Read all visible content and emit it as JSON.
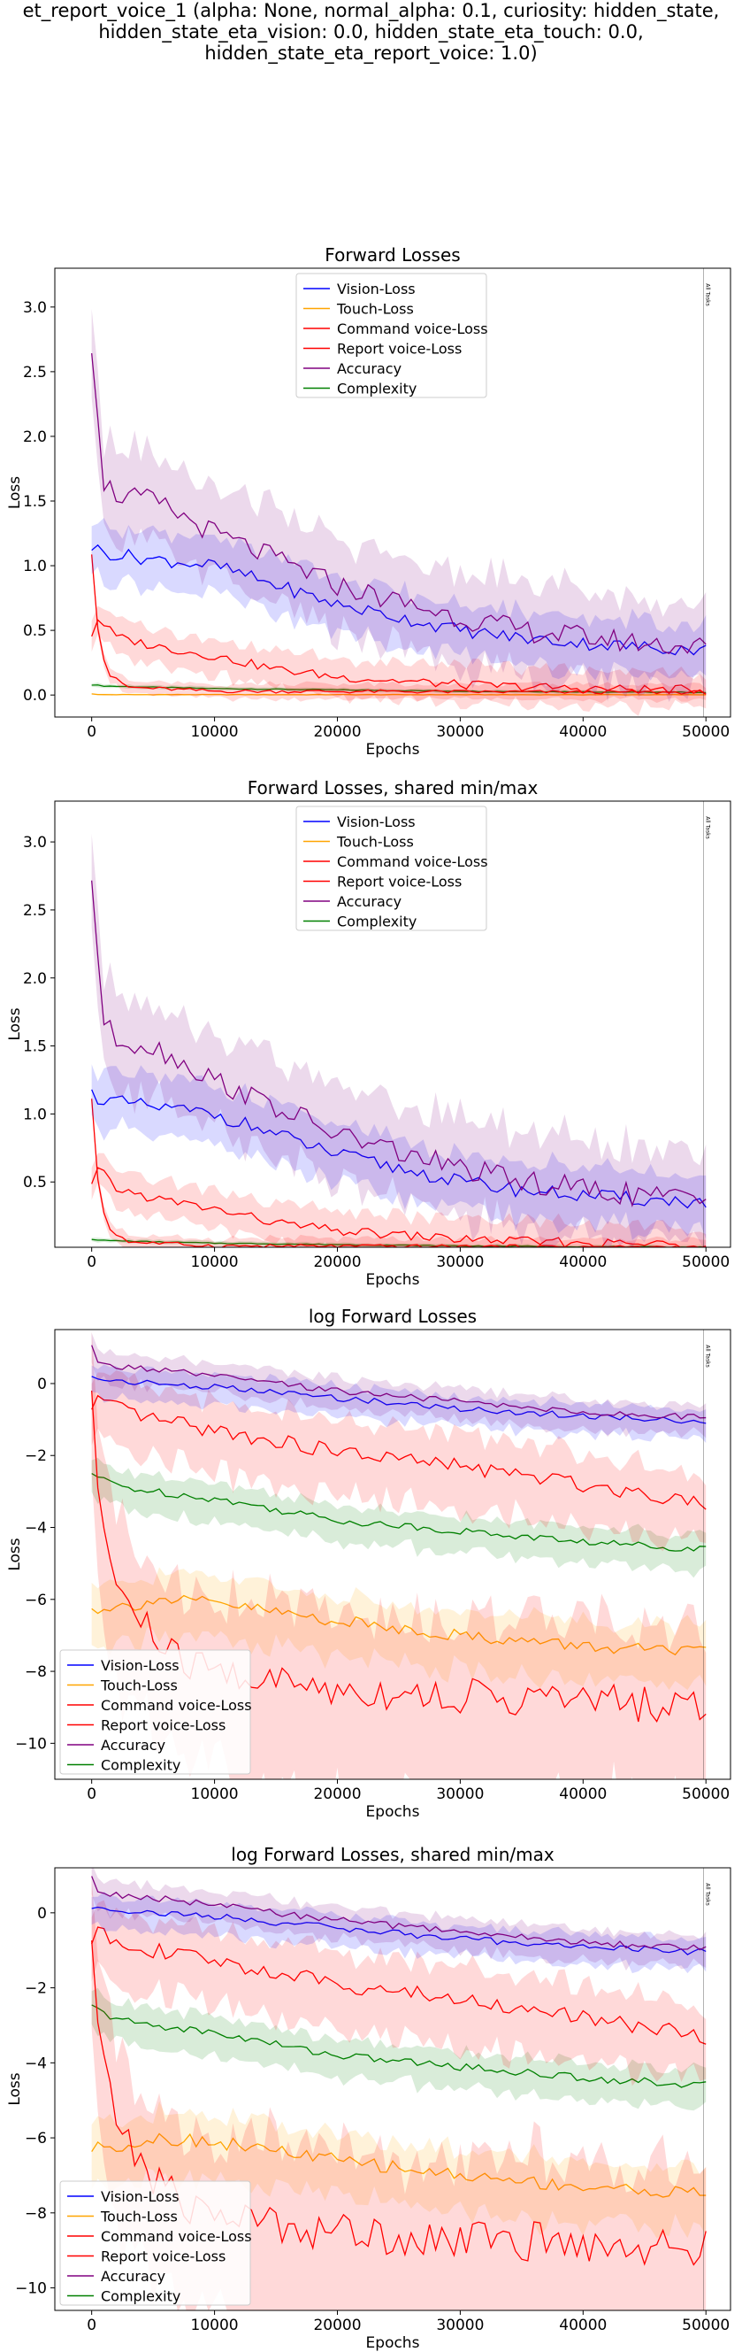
{
  "suptitle_lines": [
    "et_report_voice_1 (alpha: None, normal_alpha: 0.1, curiosity: hidden_state,",
    "hidden_state_eta_vision: 0.0, hidden_state_eta_touch: 0.0,",
    "hidden_state_eta_report_voice: 1.0)"
  ],
  "series_style": {
    "Vision-Loss": "#0000ff",
    "Touch-Loss": "#ffa500",
    "Command voice-Loss": "#ff0000",
    "Report voice-Loss": "#ff0000",
    "Accuracy": "#800080",
    "Complexity": "#008000"
  },
  "vline_label": "All Tasks",
  "chart_data": [
    {
      "type": "line",
      "title": "Forward Losses",
      "xlabel": "Epochs",
      "ylabel": "Loss",
      "xlim": [
        -3000,
        52000
      ],
      "ylim": [
        -0.17,
        3.3
      ],
      "xticks": [
        0,
        10000,
        20000,
        30000,
        40000,
        50000
      ],
      "yticks": [
        0.0,
        0.5,
        1.0,
        1.5,
        2.0,
        2.5,
        3.0
      ],
      "ytick_labels": [
        "0.0",
        "0.5",
        "1.0",
        "1.5",
        "2.0",
        "2.5",
        "3.0"
      ],
      "vline_x": 49800,
      "legend_position": "upper center",
      "legend": [
        "Vision-Loss",
        "Touch-Loss",
        "Command voice-Loss",
        "Report voice-Loss",
        "Accuracy",
        "Complexity"
      ],
      "log": false,
      "series": [
        {
          "name": "Vision-Loss",
          "x": [
            0,
            1000,
            5000,
            10000,
            15000,
            20000,
            25000,
            30000,
            35000,
            40000,
            45000,
            50000
          ],
          "values": [
            1.15,
            1.1,
            1.05,
            1.0,
            0.85,
            0.7,
            0.6,
            0.5,
            0.44,
            0.4,
            0.37,
            0.35
          ],
          "band": 0.15
        },
        {
          "name": "Touch-Loss",
          "x": [
            0,
            500,
            50000
          ],
          "values": [
            0.01,
            0.003,
            0.002
          ],
          "band": 0.005
        },
        {
          "name": "Command voice-Loss",
          "x": [
            0,
            300,
            700,
            1500,
            3000,
            10000,
            50000
          ],
          "values": [
            1.1,
            0.7,
            0.35,
            0.15,
            0.06,
            0.03,
            0.02
          ],
          "band": 0.04
        },
        {
          "name": "Report voice-Loss",
          "x": [
            0,
            300,
            1000,
            2000,
            5000,
            10000,
            15000,
            20000,
            30000,
            40000,
            50000
          ],
          "values": [
            0.47,
            0.6,
            0.55,
            0.45,
            0.38,
            0.3,
            0.2,
            0.14,
            0.08,
            0.05,
            0.04
          ],
          "band": 0.1
        },
        {
          "name": "Accuracy",
          "x": [
            0,
            500,
            1000,
            2000,
            5000,
            10000,
            15000,
            20000,
            25000,
            30000,
            35000,
            40000,
            45000,
            50000
          ],
          "values": [
            2.72,
            2.2,
            1.65,
            1.55,
            1.5,
            1.25,
            1.05,
            0.85,
            0.72,
            0.6,
            0.5,
            0.45,
            0.4,
            0.37
          ],
          "band": 0.25
        },
        {
          "name": "Complexity",
          "x": [
            0,
            1000,
            5000,
            10000,
            20000,
            30000,
            40000,
            50000
          ],
          "values": [
            0.08,
            0.07,
            0.06,
            0.05,
            0.04,
            0.03,
            0.025,
            0.02
          ],
          "band": 0.01
        }
      ]
    },
    {
      "type": "line",
      "title": "Forward Losses, shared min/max",
      "xlabel": "Epochs",
      "ylabel": "Loss",
      "xlim": [
        -3000,
        52000
      ],
      "ylim": [
        0.02,
        3.3
      ],
      "xticks": [
        0,
        10000,
        20000,
        30000,
        40000,
        50000
      ],
      "yticks": [
        0.5,
        1.0,
        1.5,
        2.0,
        2.5,
        3.0
      ],
      "ytick_labels": [
        "0.5",
        "1.0",
        "1.5",
        "2.0",
        "2.5",
        "3.0"
      ],
      "vline_x": 49800,
      "legend_position": "upper center",
      "legend": [
        "Vision-Loss",
        "Touch-Loss",
        "Command voice-Loss",
        "Report voice-Loss",
        "Accuracy",
        "Complexity"
      ],
      "log": false,
      "series": [
        {
          "name": "Vision-Loss",
          "x": [
            0,
            1000,
            5000,
            10000,
            15000,
            20000,
            25000,
            30000,
            35000,
            40000,
            45000,
            50000
          ],
          "values": [
            1.15,
            1.1,
            1.05,
            1.0,
            0.85,
            0.7,
            0.6,
            0.5,
            0.44,
            0.4,
            0.37,
            0.35
          ],
          "band": 0.15
        },
        {
          "name": "Touch-Loss",
          "x": [
            0,
            500,
            50000
          ],
          "values": [
            0.01,
            0.003,
            0.002
          ],
          "band": 0.005
        },
        {
          "name": "Command voice-Loss",
          "x": [
            0,
            300,
            700,
            1500,
            3000,
            10000,
            50000
          ],
          "values": [
            1.1,
            0.7,
            0.35,
            0.15,
            0.06,
            0.03,
            0.02
          ],
          "band": 0.04
        },
        {
          "name": "Report voice-Loss",
          "x": [
            0,
            300,
            1000,
            2000,
            5000,
            10000,
            15000,
            20000,
            30000,
            40000,
            50000
          ],
          "values": [
            0.47,
            0.6,
            0.55,
            0.45,
            0.38,
            0.3,
            0.2,
            0.14,
            0.08,
            0.05,
            0.04
          ],
          "band": 0.1
        },
        {
          "name": "Accuracy",
          "x": [
            0,
            500,
            1000,
            2000,
            5000,
            10000,
            15000,
            20000,
            25000,
            30000,
            35000,
            40000,
            45000,
            50000
          ],
          "values": [
            2.72,
            2.2,
            1.65,
            1.55,
            1.5,
            1.25,
            1.05,
            0.85,
            0.72,
            0.6,
            0.5,
            0.45,
            0.4,
            0.37
          ],
          "band": 0.25
        },
        {
          "name": "Complexity",
          "x": [
            0,
            1000,
            5000,
            10000,
            20000,
            30000,
            40000,
            50000
          ],
          "values": [
            0.08,
            0.07,
            0.06,
            0.05,
            0.04,
            0.03,
            0.025,
            0.02
          ],
          "band": 0.01
        }
      ]
    },
    {
      "type": "line",
      "title": "log Forward Losses",
      "xlabel": "Epochs",
      "ylabel": "Loss",
      "xlim": [
        -3000,
        52000
      ],
      "ylim": [
        -11.0,
        1.5
      ],
      "xticks": [
        0,
        10000,
        20000,
        30000,
        40000,
        50000
      ],
      "yticks": [
        -10,
        -8,
        -6,
        -4,
        -2,
        0
      ],
      "ytick_labels": [
        "−10",
        "−8",
        "−6",
        "−4",
        "−2",
        "0"
      ],
      "vline_x": 49800,
      "legend_position": "lower left",
      "legend": [
        "Vision-Loss",
        "Touch-Loss",
        "Command voice-Loss",
        "Report voice-Loss",
        "Accuracy",
        "Complexity"
      ],
      "log": true,
      "series": [
        {
          "name": "Vision-Loss",
          "x": [
            0,
            5000,
            10000,
            20000,
            30000,
            40000,
            50000
          ],
          "values": [
            0.15,
            0.0,
            -0.1,
            -0.4,
            -0.7,
            -0.9,
            -1.05
          ],
          "band": 0.25
        },
        {
          "name": "Touch-Loss",
          "x": [
            0,
            1000,
            3000,
            5000,
            10000,
            20000,
            30000,
            40000,
            50000
          ],
          "values": [
            -6.3,
            -6.2,
            -6.2,
            -6.0,
            -6.1,
            -6.6,
            -7.0,
            -7.3,
            -7.5
          ],
          "band": 0.5
        },
        {
          "name": "Command voice-Loss",
          "x": [
            0,
            300,
            700,
            1500,
            3000,
            5000,
            7000,
            10000,
            15000,
            20000,
            30000,
            40000,
            50000
          ],
          "values": [
            -0.7,
            -2.0,
            -3.5,
            -5.0,
            -6.2,
            -7.0,
            -7.7,
            -8.0,
            -8.3,
            -8.5,
            -8.7,
            -8.8,
            -9.0
          ],
          "band": 1.5
        },
        {
          "name": "Report voice-Loss",
          "x": [
            0,
            300,
            1000,
            3000,
            5000,
            10000,
            15000,
            20000,
            30000,
            40000,
            50000
          ],
          "values": [
            -0.8,
            -0.3,
            -0.6,
            -0.8,
            -1.0,
            -1.3,
            -1.6,
            -1.9,
            -2.3,
            -2.8,
            -3.3
          ],
          "band": 0.6
        },
        {
          "name": "Accuracy",
          "x": [
            0,
            500,
            1000,
            3000,
            5000,
            10000,
            20000,
            30000,
            40000,
            50000
          ],
          "values": [
            1.0,
            0.6,
            0.5,
            0.45,
            0.4,
            0.2,
            -0.2,
            -0.5,
            -0.8,
            -0.95
          ],
          "band": 0.25
        },
        {
          "name": "Complexity",
          "x": [
            0,
            1000,
            3000,
            5000,
            10000,
            15000,
            20000,
            30000,
            40000,
            50000
          ],
          "values": [
            -2.5,
            -2.7,
            -2.9,
            -3.0,
            -3.2,
            -3.5,
            -3.8,
            -4.1,
            -4.4,
            -4.6
          ],
          "band": 0.3
        }
      ]
    },
    {
      "type": "line",
      "title": "log Forward Losses, shared min/max",
      "xlabel": "Epochs",
      "ylabel": "Loss",
      "xlim": [
        -3000,
        52000
      ],
      "ylim": [
        -10.6,
        1.2
      ],
      "xticks": [
        0,
        10000,
        20000,
        30000,
        40000,
        50000
      ],
      "yticks": [
        -10,
        -8,
        -6,
        -4,
        -2,
        0
      ],
      "ytick_labels": [
        "−10",
        "−8",
        "−6",
        "−4",
        "−2",
        "0"
      ],
      "vline_x": 49800,
      "legend_position": "lower left",
      "legend": [
        "Vision-Loss",
        "Touch-Loss",
        "Command voice-Loss",
        "Report voice-Loss",
        "Accuracy",
        "Complexity"
      ],
      "log": true,
      "series": [
        {
          "name": "Vision-Loss",
          "x": [
            0,
            5000,
            10000,
            20000,
            30000,
            40000,
            50000
          ],
          "values": [
            0.15,
            0.0,
            -0.1,
            -0.4,
            -0.7,
            -0.9,
            -1.05
          ],
          "band": 0.25
        },
        {
          "name": "Touch-Loss",
          "x": [
            0,
            1000,
            3000,
            5000,
            10000,
            20000,
            30000,
            40000,
            50000
          ],
          "values": [
            -6.3,
            -6.2,
            -6.2,
            -6.0,
            -6.1,
            -6.6,
            -7.0,
            -7.3,
            -7.5
          ],
          "band": 0.5
        },
        {
          "name": "Command voice-Loss",
          "x": [
            0,
            300,
            700,
            1500,
            3000,
            5000,
            7000,
            10000,
            15000,
            20000,
            30000,
            40000,
            50000
          ],
          "values": [
            -0.7,
            -2.0,
            -3.5,
            -5.0,
            -6.2,
            -7.0,
            -7.7,
            -8.0,
            -8.3,
            -8.5,
            -8.7,
            -8.8,
            -9.0
          ],
          "band": 1.5
        },
        {
          "name": "Report voice-Loss",
          "x": [
            0,
            300,
            1000,
            3000,
            5000,
            10000,
            15000,
            20000,
            30000,
            40000,
            50000
          ],
          "values": [
            -0.8,
            -0.3,
            -0.6,
            -0.8,
            -1.0,
            -1.3,
            -1.6,
            -1.9,
            -2.3,
            -2.8,
            -3.3
          ],
          "band": 0.6
        },
        {
          "name": "Accuracy",
          "x": [
            0,
            500,
            1000,
            3000,
            5000,
            10000,
            20000,
            30000,
            40000,
            50000
          ],
          "values": [
            1.0,
            0.6,
            0.5,
            0.45,
            0.4,
            0.2,
            -0.2,
            -0.5,
            -0.8,
            -0.95
          ],
          "band": 0.25
        },
        {
          "name": "Complexity",
          "x": [
            0,
            1000,
            3000,
            5000,
            10000,
            15000,
            20000,
            30000,
            40000,
            50000
          ],
          "values": [
            -2.5,
            -2.7,
            -2.9,
            -3.0,
            -3.2,
            -3.5,
            -3.8,
            -4.1,
            -4.4,
            -4.6
          ],
          "band": 0.3
        }
      ]
    }
  ]
}
